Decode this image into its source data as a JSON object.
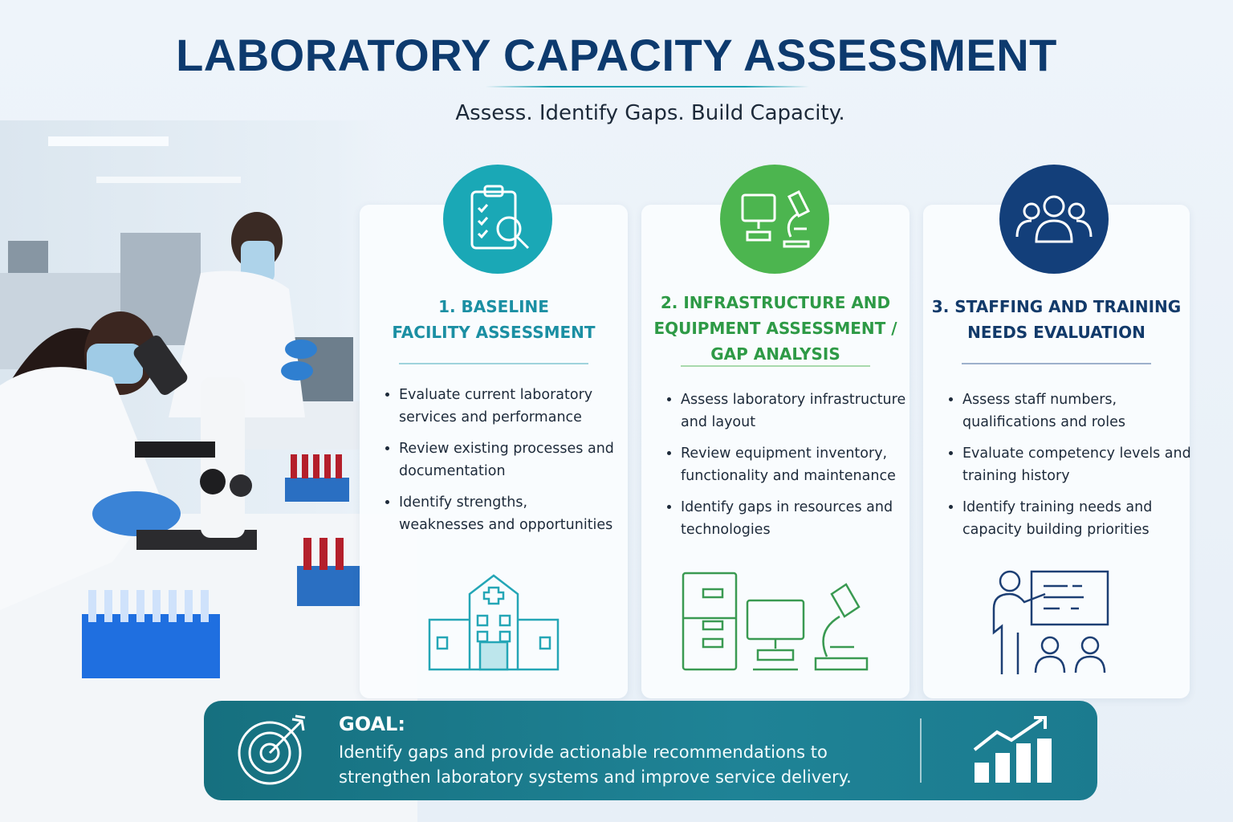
{
  "header": {
    "title": "LABORATORY CAPACITY ASSESSMENT",
    "subtitle": "Assess. Identify Gaps. Build Capacity."
  },
  "cards": [
    {
      "title_lines": [
        "1. BASELINE",
        "FACILITY ASSESSMENT"
      ],
      "bullets": [
        "Evaluate current laboratory services and performance",
        "Review existing processes and documentation",
        "Identify strengths, weaknesses and opportunities"
      ]
    },
    {
      "title_lines": [
        "2. INFRASTRUCTURE AND",
        "EQUIPMENT ASSESSMENT /",
        "GAP ANALYSIS"
      ],
      "bullets": [
        "Assess laboratory infrastructure and layout",
        "Review equipment inventory, functionality and maintenance",
        "Identify gaps in resources and technologies"
      ]
    },
    {
      "title_lines": [
        "3. STAFFING AND TRAINING",
        "NEEDS EVALUATION"
      ],
      "bullets": [
        "Assess staff numbers, qualifications and roles",
        "Evaluate competency levels and training history",
        "Identify training needs and capacity building priorities"
      ]
    }
  ],
  "goal": {
    "label": "GOAL:",
    "text": "Identify gaps and provide actionable recommendations to strengthen laboratory systems and improve service delivery."
  }
}
